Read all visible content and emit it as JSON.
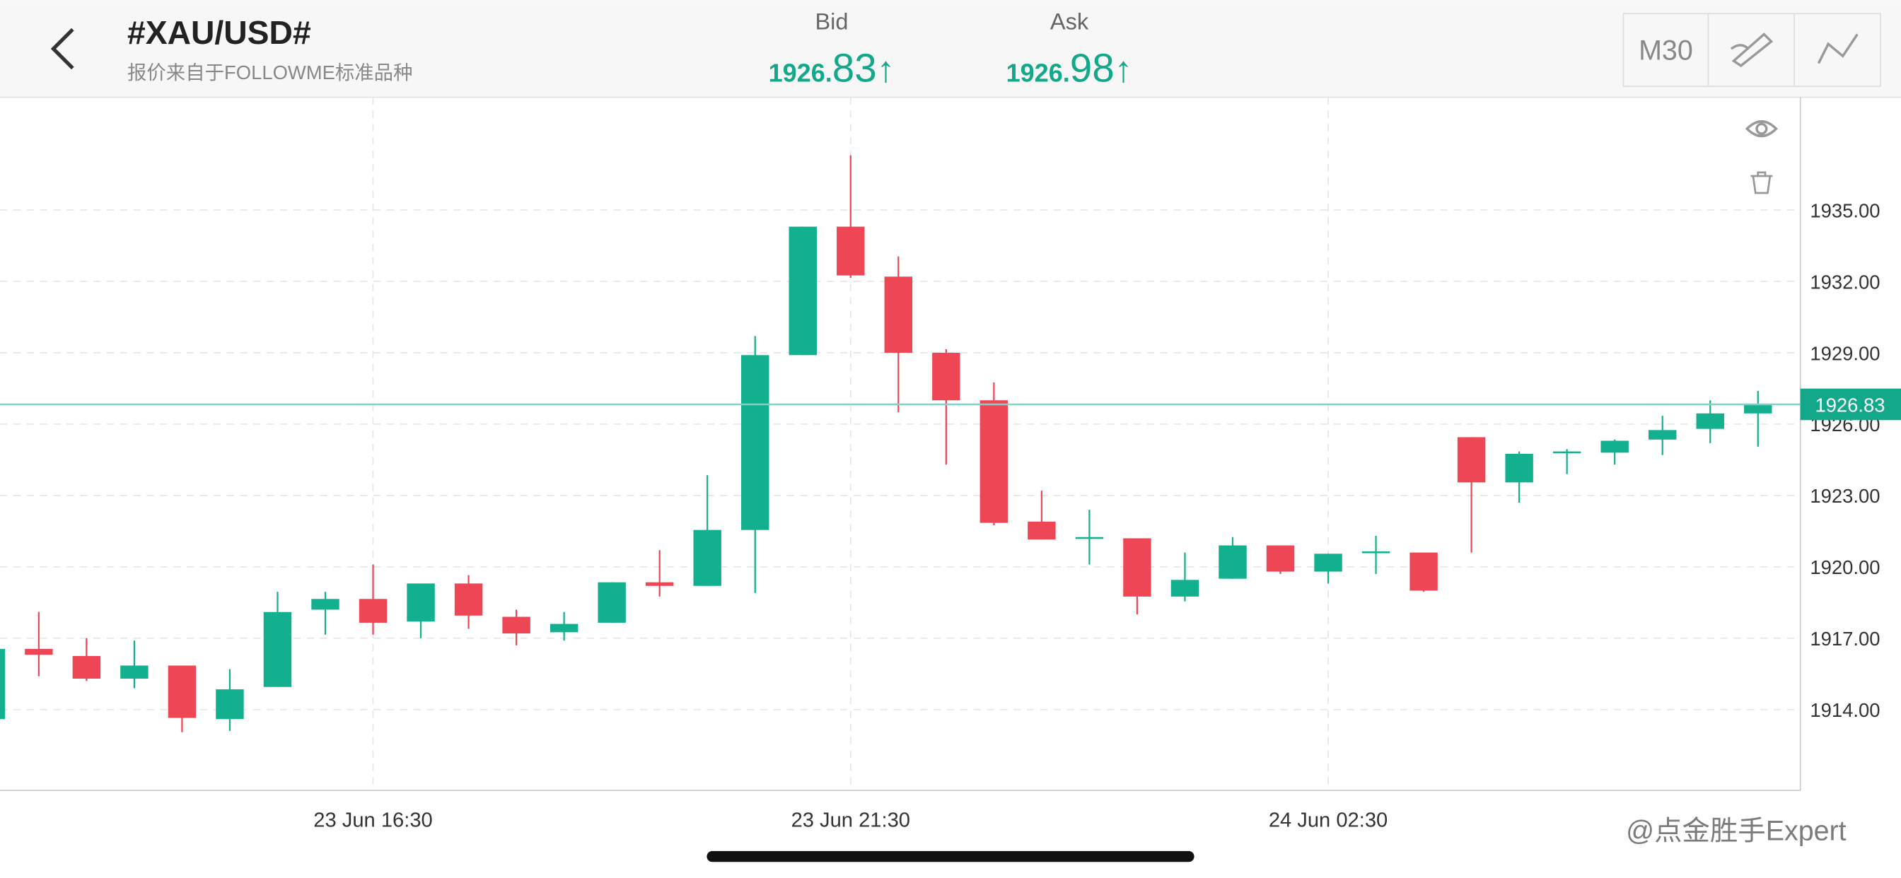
{
  "header": {
    "title": "#XAU/USD#",
    "subtitle": "报价来自于FOLLOWME标准品种",
    "bid": {
      "label": "Bid",
      "prefix": "1926.",
      "suffix": "83",
      "arrow": "↑"
    },
    "ask": {
      "label": "Ask",
      "prefix": "1926.",
      "suffix": "98",
      "arrow": "↑"
    },
    "timeframe": "M30"
  },
  "watermark": "@点金胜手Expert",
  "chart_data": {
    "type": "candlestick",
    "categories": [
      null,
      null,
      null,
      null,
      null,
      null,
      null,
      null,
      "23 Jun 16:30",
      null,
      null,
      null,
      null,
      null,
      null,
      null,
      null,
      null,
      "23 Jun 21:30",
      null,
      null,
      null,
      null,
      null,
      null,
      null,
      null,
      null,
      "24 Jun 02:30",
      null,
      null,
      null,
      null,
      null,
      null,
      null,
      null,
      null
    ],
    "open": [
      1913.6,
      1916.55,
      1916.25,
      1915.3,
      1915.85,
      1913.6,
      1914.95,
      1918.2,
      1918.65,
      1917.7,
      1919.3,
      1917.9,
      1917.25,
      1917.65,
      1919.35,
      1919.2,
      1921.55,
      1928.9,
      1934.3,
      1932.2,
      1929.0,
      1927.0,
      1921.9,
      1921.2,
      1921.2,
      1918.75,
      1919.5,
      1920.9,
      1919.8,
      1920.6,
      1920.6,
      1925.45,
      1923.55,
      1924.8,
      1924.8,
      1925.35,
      1925.8,
      1926.45
    ],
    "high": [
      1916.55,
      1918.1,
      1917.0,
      1916.9,
      1915.85,
      1915.7,
      1918.95,
      1918.95,
      1920.1,
      1919.3,
      1919.65,
      1918.2,
      1918.1,
      1919.35,
      1920.7,
      1923.85,
      1929.7,
      1934.3,
      1937.3,
      1933.05,
      1929.15,
      1927.75,
      1923.2,
      1922.4,
      1921.2,
      1920.6,
      1921.25,
      1920.9,
      1920.55,
      1921.3,
      1920.6,
      1925.45,
      1924.85,
      1924.95,
      1925.35,
      1926.35,
      1927.0,
      1927.4
    ],
    "low": [
      1913.6,
      1915.4,
      1915.2,
      1914.9,
      1913.05,
      1913.1,
      1914.95,
      1917.15,
      1917.15,
      1917.0,
      1917.4,
      1916.7,
      1916.9,
      1917.65,
      1918.75,
      1919.2,
      1918.9,
      1928.9,
      1932.15,
      1926.5,
      1924.3,
      1921.75,
      1921.15,
      1920.1,
      1918.0,
      1918.55,
      1919.5,
      1919.7,
      1919.3,
      1919.7,
      1918.95,
      1920.6,
      1922.7,
      1923.9,
      1924.3,
      1924.7,
      1925.2,
      1925.05
    ],
    "close": [
      1916.55,
      1916.3,
      1915.3,
      1915.85,
      1913.65,
      1914.85,
      1918.1,
      1918.65,
      1917.65,
      1919.3,
      1917.95,
      1917.2,
      1917.6,
      1919.35,
      1919.2,
      1921.55,
      1928.9,
      1934.3,
      1932.25,
      1929.0,
      1927.0,
      1921.85,
      1921.15,
      1921.25,
      1918.75,
      1919.45,
      1920.9,
      1919.8,
      1920.55,
      1920.65,
      1919.0,
      1923.55,
      1924.75,
      1924.85,
      1925.3,
      1925.75,
      1926.45,
      1926.83
    ],
    "up_color": "#13b08f",
    "down_color": "#ef4655",
    "ylim": [
      1910.6,
      1939.74
    ],
    "yticks": [
      {
        "value": 1914,
        "label": "1914.00"
      },
      {
        "value": 1917,
        "label": "1917.00"
      },
      {
        "value": 1920,
        "label": "1920.00"
      },
      {
        "value": 1923,
        "label": "1923.00"
      },
      {
        "value": 1926,
        "label": "1926.00"
      },
      {
        "value": 1929,
        "label": "1929.00"
      },
      {
        "value": 1932,
        "label": "1932.00"
      },
      {
        "value": 1935,
        "label": "1935.00"
      }
    ],
    "last_price": {
      "value": 1926.83,
      "label": "1926.83"
    },
    "grid": true
  }
}
